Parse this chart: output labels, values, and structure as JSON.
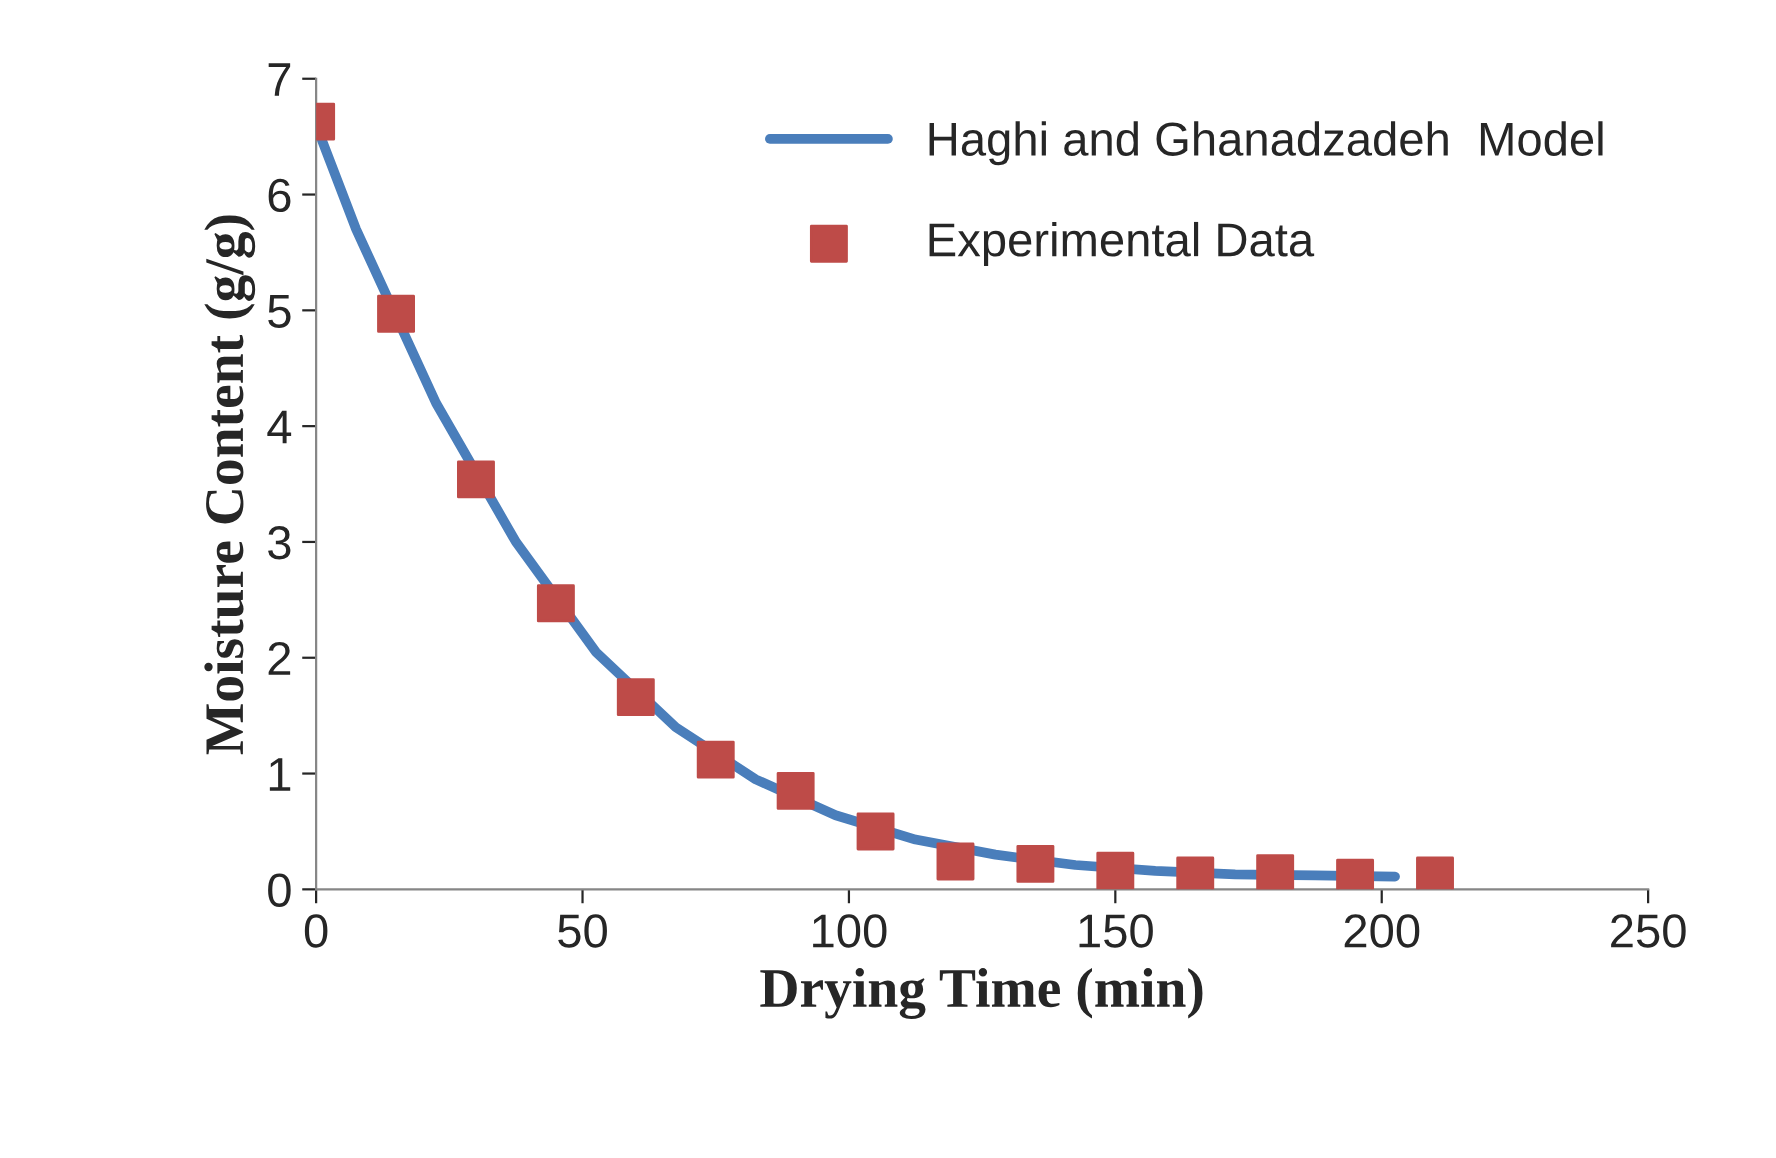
{
  "chart_data": {
    "type": "line",
    "xlabel": "Drying Time (min)",
    "ylabel": "Moisture Content (g/g)",
    "xlim": [
      0,
      250
    ],
    "xticks": [
      0,
      50,
      100,
      150,
      200,
      250
    ],
    "ylim": [
      0,
      7
    ],
    "yticks": [
      0,
      1,
      2,
      3,
      4,
      5,
      6,
      7
    ],
    "grid": false,
    "legend": "top right",
    "series": [
      {
        "name": "Haghi and Ghanadzadeh  Model",
        "color": "#4a7ebb",
        "marker": "none",
        "line_style": "solid",
        "x": [
          0,
          7.5,
          22.5,
          37.5,
          52.5,
          67.5,
          82.5,
          97.5,
          112.5,
          127.5,
          142.5,
          157.5,
          172.5,
          187.5,
          202.5
        ],
        "values": [
          6.6,
          5.7,
          4.2,
          3.0,
          2.05,
          1.4,
          0.95,
          0.64,
          0.43,
          0.3,
          0.21,
          0.16,
          0.13,
          0.12,
          0.11
        ]
      },
      {
        "name": "Experimental Data",
        "type": "scatter",
        "color": "#be4b48",
        "marker": "square",
        "x": [
          0,
          15,
          30,
          45,
          60,
          75,
          90,
          105,
          120,
          135,
          150,
          165,
          180,
          195,
          210
        ],
        "values": [
          6.63,
          4.97,
          3.54,
          2.47,
          1.66,
          1.12,
          0.85,
          0.5,
          0.24,
          0.22,
          0.16,
          0.12,
          0.14,
          0.1,
          0.12
        ]
      }
    ]
  }
}
